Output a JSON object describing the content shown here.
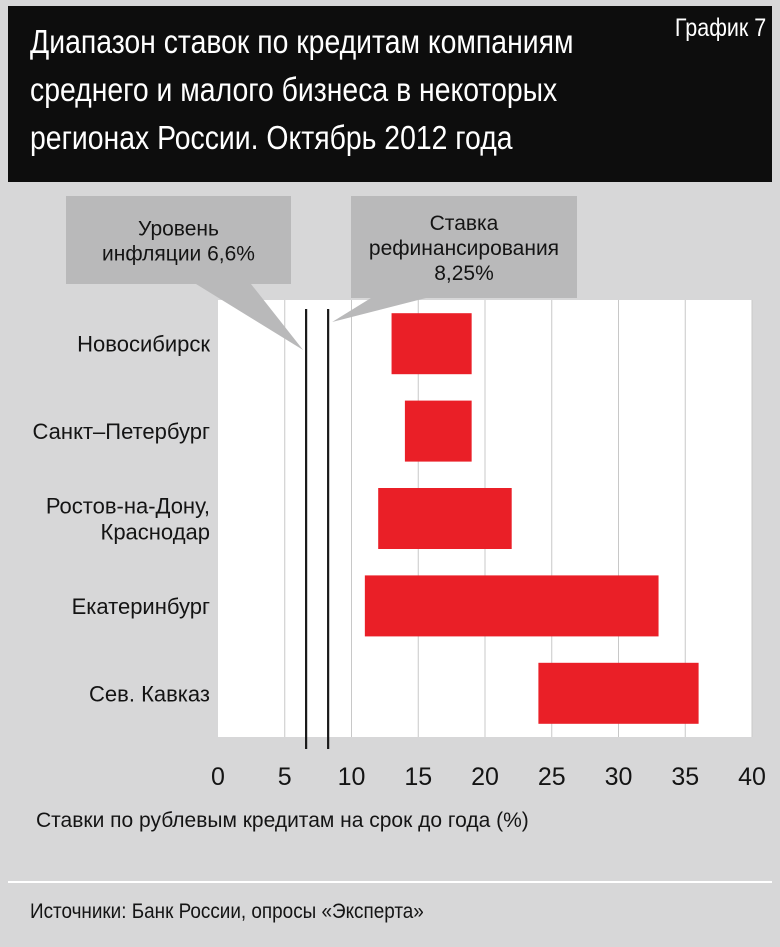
{
  "header": {
    "title_lines": [
      "Диапазон ставок по кредитам компаниям",
      "среднего и малого бизнеса в некоторых",
      "регионах России. Октябрь 2012 года"
    ],
    "chart_number": "График 7"
  },
  "chart_data": {
    "type": "bar",
    "orientation": "horizontal",
    "subtype": "floating-range",
    "title": "Диапазон ставок по кредитам компаниям среднего и малого бизнеса в некоторых регионах России. Октябрь 2012 года",
    "xlabel": "Ставки по рублевым кредитам на срок до года (%)",
    "ylabel": "",
    "xlim": [
      0,
      40
    ],
    "xticks": [
      0,
      5,
      10,
      15,
      20,
      25,
      30,
      35,
      40
    ],
    "grid": true,
    "categories": [
      [
        "Новосибирск"
      ],
      [
        "Санкт–Петербург"
      ],
      [
        "Ростов-на-Дону,",
        "Краснодар"
      ],
      [
        "Екатеринбург"
      ],
      [
        "Сев. Кавказ"
      ]
    ],
    "ranges": [
      [
        13,
        19
      ],
      [
        14,
        19
      ],
      [
        12,
        22
      ],
      [
        11,
        33
      ],
      [
        24,
        36
      ]
    ],
    "bar_color": "#ea1f27",
    "reference_lines": [
      {
        "value": 6.6,
        "label_lines": [
          "Уровень",
          "инфляции 6,6%"
        ]
      },
      {
        "value": 8.25,
        "label_lines": [
          "Ставка",
          "рефинансирования",
          "8,25%"
        ]
      }
    ]
  },
  "footer": {
    "source": "Источники: Банк России, опросы «Эксперта»"
  }
}
